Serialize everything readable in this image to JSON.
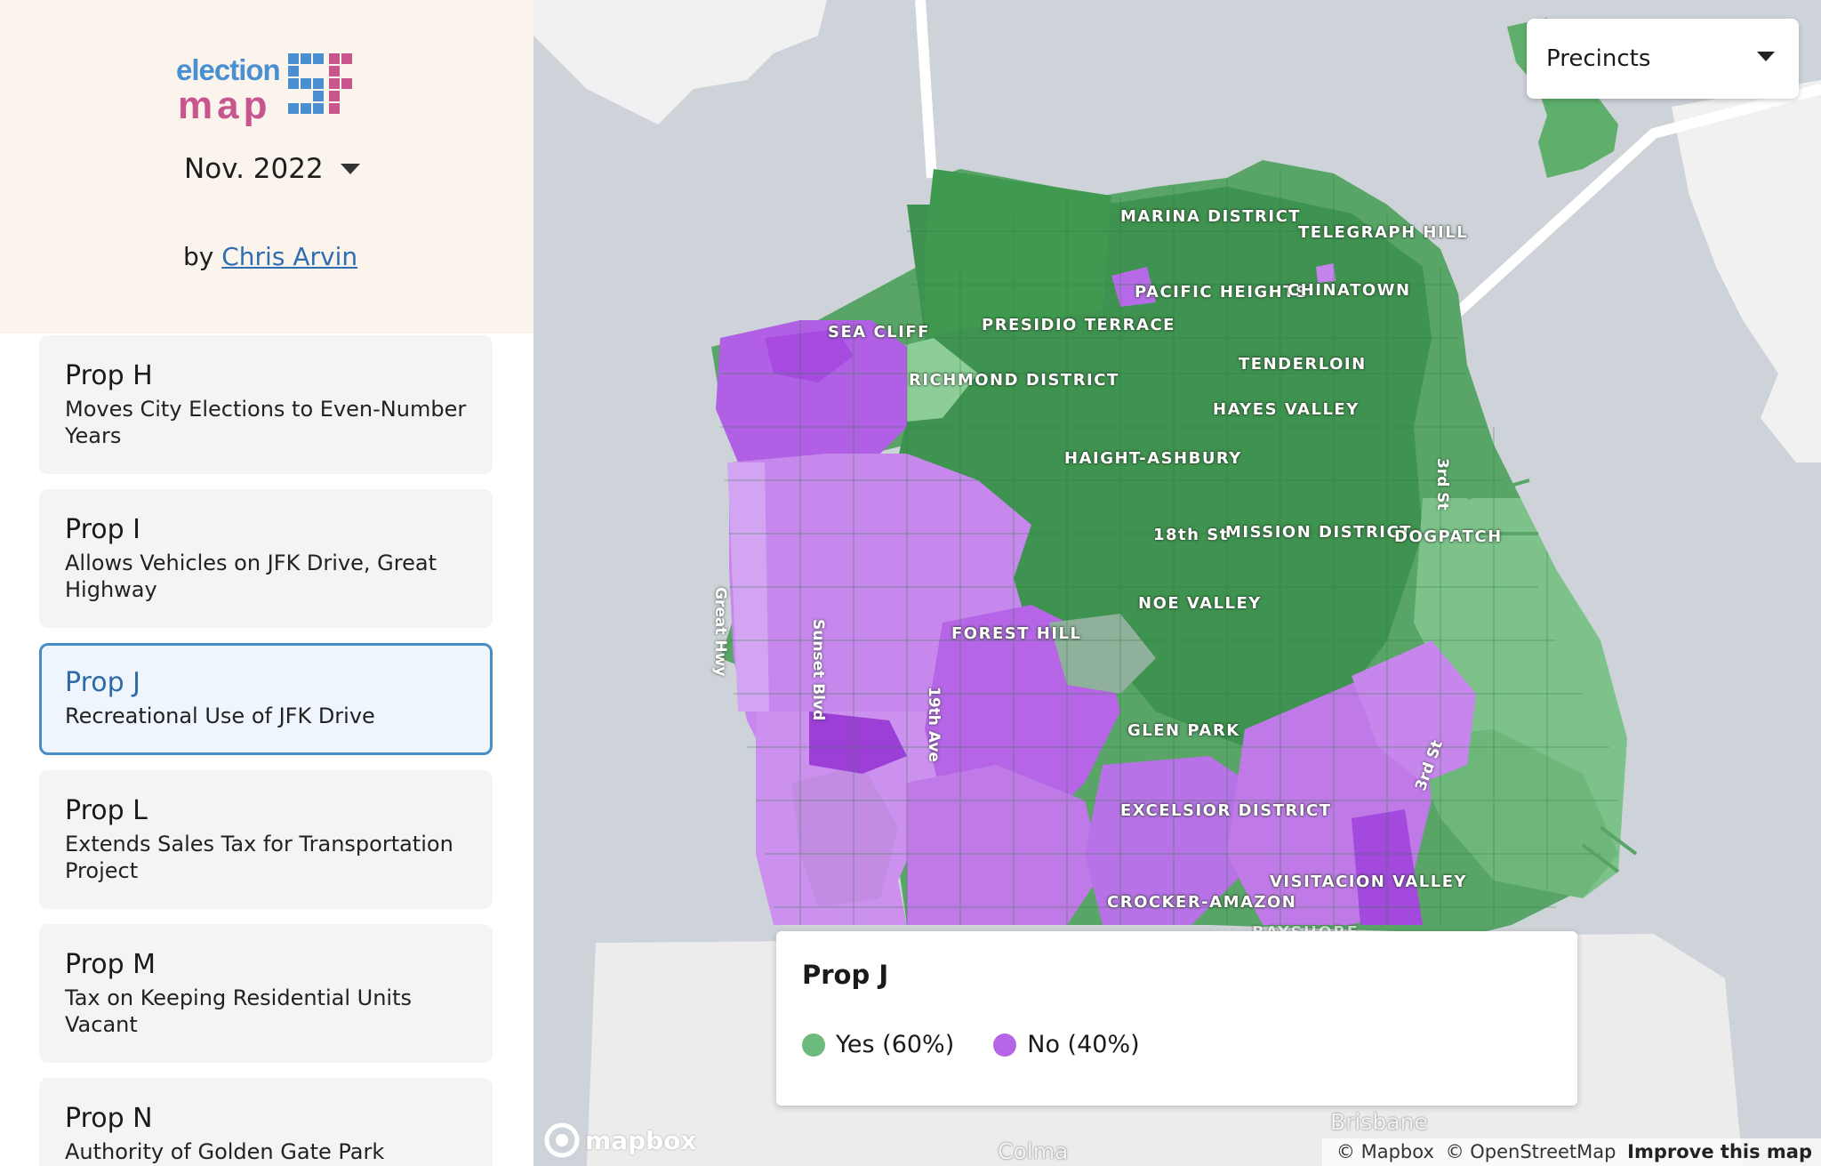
{
  "sidebar": {
    "logo": {
      "word1": "election",
      "word2": "map",
      "mark": "SF"
    },
    "election_selector": {
      "value": "Nov. 2022"
    },
    "byline": {
      "prefix": "by",
      "author": "Chris Arvin"
    },
    "props": [
      {
        "name": "Prop H",
        "desc": "Moves City Elections to Even-Number Years",
        "selected": false
      },
      {
        "name": "Prop I",
        "desc": "Allows Vehicles on JFK Drive, Great Highway",
        "selected": false
      },
      {
        "name": "Prop J",
        "desc": "Recreational Use of JFK Drive",
        "selected": true
      },
      {
        "name": "Prop L",
        "desc": "Extends Sales Tax for Transportation Project",
        "selected": false
      },
      {
        "name": "Prop M",
        "desc": "Tax on Keeping Residential Units Vacant",
        "selected": false
      },
      {
        "name": "Prop N",
        "desc": "Authority of Golden Gate Park",
        "selected": false
      }
    ]
  },
  "map": {
    "layer_selector": {
      "value": "Precincts",
      "icon": "chevron-down-icon"
    },
    "legend": {
      "title": "Prop J",
      "items": [
        {
          "label": "Yes (60%)",
          "color": "#6dbb7c"
        },
        {
          "label": "No (40%)",
          "color": "#b565e6"
        }
      ]
    },
    "neighborhood_labels": [
      "MARINA DISTRICT",
      "TELEGRAPH HILL",
      "PACIFIC HEIGHTS",
      "CHINATOWN",
      "SEA CLIFF",
      "PRESIDIO TERRACE",
      "TENDERLOIN",
      "RICHMOND DISTRICT",
      "HAYES VALLEY",
      "HAIGHT-ASHBURY",
      "18th St",
      "MISSION DISTRICT",
      "DOGPATCH",
      "NOE VALLEY",
      "FOREST HILL",
      "GLEN PARK",
      "EXCELSIOR DISTRICT",
      "VISITACION VALLEY",
      "CROCKER-AMAZON",
      "BAYSHORE"
    ],
    "street_labels": [
      "Great Hwy",
      "Sunset Blvd",
      "19th Ave",
      "3rd St",
      "3rd St"
    ],
    "city_labels": [
      "Brisbane",
      "Colma"
    ],
    "attribution": {
      "mapbox": "© Mapbox",
      "osm": "© OpenStreetMap",
      "improve": "Improve this map"
    },
    "mapbox_logo": "mapbox"
  }
}
